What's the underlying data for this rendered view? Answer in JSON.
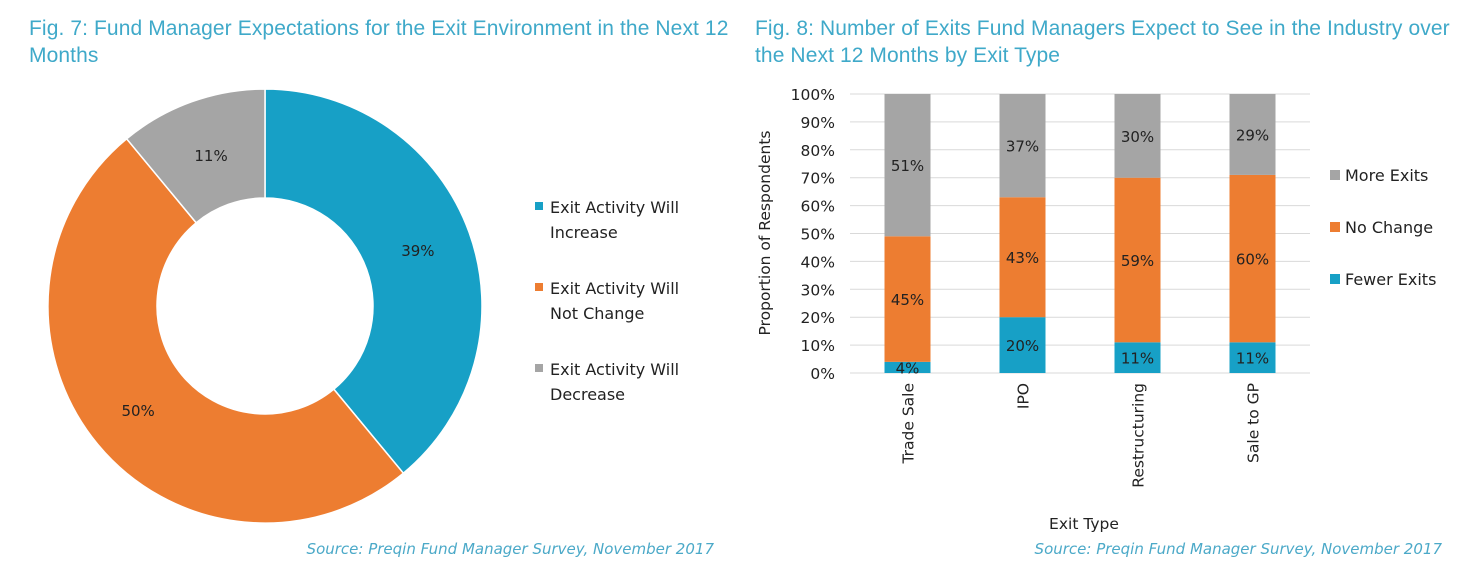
{
  "figures": {
    "fig7": {
      "title": "Fig. 7: Fund Manager Expectations for the Exit Environment in the Next 12 Months",
      "source": "Source: Preqin Fund Manager Survey, November 2017"
    },
    "fig8": {
      "title": "Fig. 8: Number of Exits Fund Managers Expect to See in the Industry over the Next 12 Months by Exit Type",
      "source": "Source: Preqin Fund Manager Survey, November 2017"
    }
  },
  "chart_data": [
    {
      "type": "pie",
      "variant": "donut",
      "title": "Fig. 7: Fund Manager Expectations for the Exit Environment in the Next 12 Months",
      "slices": [
        {
          "label": "Exit Activity Will Increase",
          "legend_lines": [
            "Exit Activity Will",
            "Increase"
          ],
          "value": 39,
          "data_label": "39%",
          "color": "#17a0c6"
        },
        {
          "label": "Exit Activity Will Not Change",
          "legend_lines": [
            "Exit Activity Will",
            "Not Change"
          ],
          "value": 50,
          "data_label": "50%",
          "color": "#ed7d31"
        },
        {
          "label": "Exit Activity Will Decrease",
          "legend_lines": [
            "Exit Activity Will",
            "Decrease"
          ],
          "value": 11,
          "data_label": "11%",
          "color": "#a5a5a5"
        }
      ],
      "legend_position": "right",
      "start_angle": "12 o'clock, clockwise"
    },
    {
      "type": "bar",
      "stacked": true,
      "percent": true,
      "title": "Fig. 8: Number of Exits Fund Managers Expect to See in the Industry over the Next 12 Months by Exit Type",
      "xlabel": "Exit Type",
      "ylabel": "Proportion of Respondents",
      "categories": [
        "Trade Sale",
        "IPO",
        "Restructuring",
        "Sale to GP"
      ],
      "yticks": [
        "0%",
        "10%",
        "20%",
        "30%",
        "40%",
        "50%",
        "60%",
        "70%",
        "80%",
        "90%",
        "100%"
      ],
      "ylim": [
        0,
        100
      ],
      "grid": true,
      "legend_position": "right",
      "series": [
        {
          "name": "Fewer Exits",
          "color": "#17a0c6",
          "values": [
            4,
            20,
            11,
            11
          ],
          "labels": [
            "4%",
            "20%",
            "11%",
            "11%"
          ]
        },
        {
          "name": "No Change",
          "color": "#ed7d31",
          "values": [
            45,
            43,
            59,
            60
          ],
          "labels": [
            "45%",
            "43%",
            "59%",
            "60%"
          ]
        },
        {
          "name": "More Exits",
          "color": "#a5a5a5",
          "values": [
            51,
            37,
            30,
            29
          ],
          "labels": [
            "51%",
            "37%",
            "30%",
            "29%"
          ]
        }
      ],
      "legend_order": [
        "More Exits",
        "No Change",
        "Fewer Exits"
      ]
    }
  ]
}
